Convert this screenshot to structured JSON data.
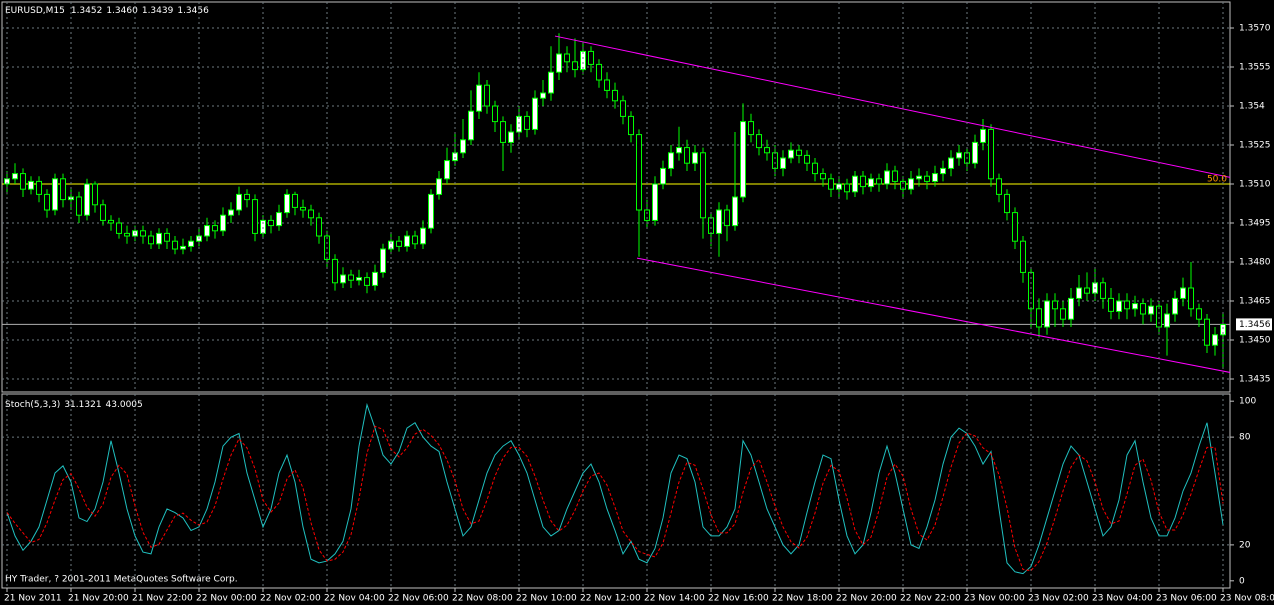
{
  "chart_data": [
    {
      "type": "candlestick",
      "title": "EURUSD,M15",
      "title_value_labels": [
        "1.3452",
        "1.3460",
        "1.3439",
        "1.3456"
      ],
      "categories": [
        "21 Nov 2011",
        null,
        null,
        null,
        null,
        null,
        null,
        null,
        "21 Nov 20:00",
        null,
        null,
        null,
        null,
        null,
        null,
        null,
        "21 Nov 22:00",
        null,
        null,
        null,
        null,
        null,
        null,
        null,
        "22 Nov 00:00",
        null,
        null,
        null,
        null,
        null,
        null,
        null,
        "22 Nov 02:00",
        null,
        null,
        null,
        null,
        null,
        null,
        null,
        "22 Nov 04:00",
        null,
        null,
        null,
        null,
        null,
        null,
        null,
        "22 Nov 06:00",
        null,
        null,
        null,
        null,
        null,
        null,
        null,
        "22 Nov 08:00",
        null,
        null,
        null,
        null,
        null,
        null,
        null,
        "22 Nov 10:00",
        null,
        null,
        null,
        null,
        null,
        null,
        null,
        "22 Nov 12:00",
        null,
        null,
        null,
        null,
        null,
        null,
        null,
        "22 Nov 14:00",
        null,
        null,
        null,
        null,
        null,
        null,
        null,
        "22 Nov 16:00",
        null,
        null,
        null,
        null,
        null,
        null,
        null,
        "22 Nov 18:00",
        null,
        null,
        null,
        null,
        null,
        null,
        null,
        "22 Nov 20:00",
        null,
        null,
        null,
        null,
        null,
        null,
        null,
        "22 Nov 22:00",
        null,
        null,
        null,
        null,
        null,
        null,
        null,
        "23 Nov 00:00",
        null,
        null,
        null,
        null,
        null,
        null,
        null,
        "23 Nov 02:00",
        null,
        null,
        null,
        null,
        null,
        null,
        null,
        "23 Nov 04:00",
        null,
        null,
        null,
        null,
        null,
        null,
        null,
        "23 Nov 06:00",
        null,
        null,
        null,
        null,
        null,
        null,
        null,
        "23 Nov 08:00"
      ],
      "open": [
        1.351,
        1.3512,
        1.3514,
        1.3508,
        1.3511,
        1.3506,
        1.35,
        1.3512,
        1.3504,
        1.3505,
        1.3498,
        1.351,
        1.3502,
        1.3496,
        1.3495,
        1.3491,
        1.349,
        1.3492,
        1.349,
        1.3487,
        1.3491,
        1.3488,
        1.3485,
        1.3486,
        1.3488,
        1.349,
        1.3494,
        1.3492,
        1.3498,
        1.35,
        1.3506,
        1.3504,
        1.3491,
        1.3496,
        1.3494,
        1.3499,
        1.3506,
        1.3501,
        1.35,
        1.3497,
        1.349,
        1.3481,
        1.3472,
        1.3475,
        1.3473,
        1.3474,
        1.3471,
        1.3476,
        1.3485,
        1.3488,
        1.3486,
        1.349,
        1.3487,
        1.3493,
        1.3506,
        1.3512,
        1.3519,
        1.3522,
        1.3527,
        1.3538,
        1.3548,
        1.354,
        1.3534,
        1.3526,
        1.353,
        1.3536,
        1.3531,
        1.3543,
        1.3545,
        1.3553,
        1.356,
        1.3557,
        1.3554,
        1.3561,
        1.3556,
        1.355,
        1.3546,
        1.3542,
        1.3536,
        1.3529,
        1.35,
        1.3496,
        1.351,
        1.3516,
        1.3522,
        1.3524,
        1.3518,
        1.3522,
        1.3497,
        1.3491,
        1.35,
        1.3494,
        1.3505,
        1.3534,
        1.3529,
        1.3524,
        1.3522,
        1.3516,
        1.352,
        1.3523,
        1.3521,
        1.3518,
        1.3514,
        1.3512,
        1.3508,
        1.351,
        1.3507,
        1.3513,
        1.3509,
        1.3512,
        1.351,
        1.3515,
        1.3511,
        1.3508,
        1.3512,
        1.3513,
        1.3511,
        1.3514,
        1.3516,
        1.352,
        1.3522,
        1.3518,
        1.3526,
        1.3531,
        1.3512,
        1.3506,
        1.3499,
        1.3488,
        1.3476,
        1.3462,
        1.3455,
        1.3465,
        1.3462,
        1.3458,
        1.3466,
        1.347,
        1.3468,
        1.3472,
        1.3466,
        1.3461,
        1.3465,
        1.3462,
        1.3464,
        1.346,
        1.3463,
        1.3455,
        1.346,
        1.3466,
        1.347,
        1.3462,
        1.3458,
        1.3448,
        1.3452
      ],
      "high": [
        1.3515,
        1.3518,
        1.3516,
        1.3513,
        1.3513,
        1.3508,
        1.3514,
        1.3514,
        1.3508,
        1.3507,
        1.3512,
        1.3511,
        1.3504,
        1.3498,
        1.3497,
        1.3494,
        1.3494,
        1.3494,
        1.3492,
        1.3493,
        1.3493,
        1.349,
        1.3489,
        1.349,
        1.3493,
        1.3497,
        1.3496,
        1.3501,
        1.3503,
        1.3509,
        1.3508,
        1.3506,
        1.3498,
        1.3498,
        1.3502,
        1.3508,
        1.3507,
        1.3504,
        1.3502,
        1.3499,
        1.3492,
        1.3483,
        1.3478,
        1.3477,
        1.3477,
        1.3476,
        1.3479,
        1.3487,
        1.3491,
        1.349,
        1.3492,
        1.3492,
        1.3496,
        1.3508,
        1.3515,
        1.3524,
        1.353,
        1.3535,
        1.3546,
        1.3553,
        1.355,
        1.3542,
        1.3536,
        1.3533,
        1.354,
        1.3538,
        1.3546,
        1.355,
        1.3563,
        1.3568,
        1.3563,
        1.3566,
        1.3564,
        1.3563,
        1.3558,
        1.3553,
        1.3549,
        1.3544,
        1.3538,
        1.3531,
        1.3504,
        1.3513,
        1.3519,
        1.3525,
        1.3532,
        1.3527,
        1.3525,
        1.3524,
        1.3499,
        1.3503,
        1.3502,
        1.353,
        1.3541,
        1.3537,
        1.3531,
        1.3527,
        1.3525,
        1.3523,
        1.3526,
        1.3525,
        1.3523,
        1.352,
        1.3516,
        1.3514,
        1.3513,
        1.3512,
        1.3515,
        1.3515,
        1.3514,
        1.3514,
        1.3518,
        1.3517,
        1.3513,
        1.3515,
        1.3516,
        1.3515,
        1.3517,
        1.3519,
        1.3523,
        1.3525,
        1.3524,
        1.3529,
        1.3535,
        1.3533,
        1.3514,
        1.3508,
        1.3501,
        1.349,
        1.3478,
        1.3466,
        1.3468,
        1.3468,
        1.3465,
        1.347,
        1.3475,
        1.3476,
        1.3478,
        1.3474,
        1.347,
        1.3468,
        1.3468,
        1.3467,
        1.3466,
        1.3466,
        1.3465,
        1.3464,
        1.3469,
        1.3474,
        1.348,
        1.3464,
        1.346,
        1.3455,
        1.346
      ],
      "low": [
        1.3506,
        1.351,
        1.3505,
        1.3506,
        1.3503,
        1.3497,
        1.3498,
        1.3501,
        1.35,
        1.3495,
        1.3496,
        1.3499,
        1.3494,
        1.3492,
        1.3489,
        1.3487,
        1.3488,
        1.3487,
        1.3485,
        1.3485,
        1.3485,
        1.3483,
        1.3483,
        1.3484,
        1.3486,
        1.3488,
        1.3489,
        1.349,
        1.3495,
        1.3498,
        1.3501,
        1.3488,
        1.3489,
        1.3491,
        1.3492,
        1.3497,
        1.3498,
        1.3497,
        1.3494,
        1.3487,
        1.3478,
        1.3469,
        1.347,
        1.347,
        1.3471,
        1.3468,
        1.3469,
        1.3474,
        1.3483,
        1.3484,
        1.3484,
        1.3485,
        1.3485,
        1.3491,
        1.3504,
        1.351,
        1.3517,
        1.352,
        1.3525,
        1.3535,
        1.3537,
        1.353,
        1.3515,
        1.3522,
        1.3527,
        1.3528,
        1.3529,
        1.354,
        1.3542,
        1.355,
        1.3553,
        1.3551,
        1.3552,
        1.3553,
        1.3547,
        1.3543,
        1.3539,
        1.3533,
        1.3526,
        1.3482,
        1.3493,
        1.3494,
        1.3508,
        1.3513,
        1.3519,
        1.3515,
        1.3515,
        1.3489,
        1.3486,
        1.3482,
        1.3488,
        1.3492,
        1.3503,
        1.3526,
        1.3521,
        1.3519,
        1.3513,
        1.3513,
        1.3518,
        1.3518,
        1.3515,
        1.3511,
        1.3509,
        1.3505,
        1.3505,
        1.3504,
        1.3505,
        1.3506,
        1.3507,
        1.3507,
        1.3508,
        1.3508,
        1.3505,
        1.3506,
        1.3509,
        1.3508,
        1.3509,
        1.3511,
        1.3513,
        1.3517,
        1.3515,
        1.3516,
        1.3523,
        1.3509,
        1.3503,
        1.3496,
        1.3485,
        1.3472,
        1.3455,
        1.3451,
        1.3452,
        1.3455,
        1.3455,
        1.3455,
        1.3463,
        1.3465,
        1.3465,
        1.3462,
        1.3458,
        1.3458,
        1.3458,
        1.3459,
        1.3456,
        1.3457,
        1.3452,
        1.3444,
        1.3457,
        1.3463,
        1.3459,
        1.3455,
        1.3445,
        1.3444,
        1.3439
      ],
      "close": [
        1.3512,
        1.3514,
        1.3508,
        1.3511,
        1.3506,
        1.35,
        1.3512,
        1.3504,
        1.3505,
        1.3498,
        1.351,
        1.3502,
        1.3496,
        1.3495,
        1.3491,
        1.349,
        1.3492,
        1.349,
        1.3487,
        1.3491,
        1.3488,
        1.3485,
        1.3486,
        1.3488,
        1.349,
        1.3494,
        1.3492,
        1.3498,
        1.35,
        1.3506,
        1.3504,
        1.3491,
        1.3496,
        1.3494,
        1.3499,
        1.3506,
        1.3501,
        1.35,
        1.3497,
        1.349,
        1.3481,
        1.3472,
        1.3475,
        1.3473,
        1.3474,
        1.3471,
        1.3476,
        1.3485,
        1.3488,
        1.3486,
        1.349,
        1.3487,
        1.3493,
        1.3506,
        1.3512,
        1.3519,
        1.3522,
        1.3527,
        1.3538,
        1.3548,
        1.354,
        1.3534,
        1.3526,
        1.353,
        1.3536,
        1.3531,
        1.3543,
        1.3545,
        1.3553,
        1.356,
        1.3557,
        1.3554,
        1.3561,
        1.3556,
        1.355,
        1.3546,
        1.3542,
        1.3536,
        1.3529,
        1.35,
        1.3496,
        1.351,
        1.3516,
        1.3522,
        1.3524,
        1.3518,
        1.3522,
        1.3497,
        1.3491,
        1.35,
        1.3494,
        1.3505,
        1.3534,
        1.3529,
        1.3524,
        1.3522,
        1.3516,
        1.352,
        1.3523,
        1.3521,
        1.3518,
        1.3514,
        1.3512,
        1.3508,
        1.351,
        1.3507,
        1.3513,
        1.3509,
        1.3512,
        1.351,
        1.3515,
        1.3511,
        1.3508,
        1.3512,
        1.3513,
        1.3511,
        1.3514,
        1.3516,
        1.352,
        1.3522,
        1.3518,
        1.3526,
        1.3531,
        1.3512,
        1.3506,
        1.3499,
        1.3488,
        1.3476,
        1.3462,
        1.3455,
        1.3465,
        1.3462,
        1.3458,
        1.3466,
        1.347,
        1.3468,
        1.3472,
        1.3466,
        1.3461,
        1.3465,
        1.3462,
        1.3464,
        1.346,
        1.3463,
        1.3455,
        1.346,
        1.3466,
        1.347,
        1.3462,
        1.3458,
        1.3448,
        1.3452,
        1.3456
      ],
      "colors": {
        "wick": "#00ff00",
        "up": "#ffffff",
        "down": "#000000",
        "grid": "#6e7a80",
        "last": "#b0b0b0"
      },
      "ylim": [
        1.343,
        1.358
      ],
      "yticks": [
        {
          "value": 1.357,
          "label": "1.3570"
        },
        1.3555,
        1.354,
        1.3525,
        {
          "value": 1.351,
          "label": "1.3510"
        },
        1.3495,
        {
          "value": 1.348,
          "label": "1.3480"
        },
        1.3465,
        {
          "value": 1.345,
          "label": "1.3450"
        },
        1.3435
      ],
      "yticks_fix": null,
      "grid": true,
      "level": {
        "value": 1.351,
        "label": "50.0",
        "color": "#ffff00",
        "label_color": "#ff9900"
      },
      "channel": {
        "color": "#ff00ff",
        "upper": {
          "x": [
            68.5,
            153.25
          ],
          "y": [
            1.35669,
            1.35123
          ]
        },
        "lower": {
          "x": [
            78.75,
            153.25
          ],
          "y": [
            1.34815,
            1.34373
          ]
        }
      }
    },
    {
      "type": "line",
      "title": "Stoch(5,3,3)",
      "footer": "HY Trader, ? 2001-2011 MetaQuotes Software Corp.",
      "series": [
        {
          "color": "#20c0c0",
          "values": [
            38,
            25,
            17,
            22,
            30,
            45,
            60,
            64,
            55,
            35,
            33,
            40,
            55,
            78,
            60,
            40,
            25,
            16,
            15,
            30,
            40,
            38,
            35,
            28,
            30,
            40,
            55,
            75,
            80,
            82,
            60,
            45,
            30,
            40,
            60,
            70,
            55,
            30,
            12,
            10,
            11,
            15,
            22,
            40,
            75,
            98,
            85,
            70,
            65,
            72,
            85,
            88,
            80,
            75,
            72,
            55,
            40,
            25,
            30,
            45,
            60,
            70,
            75,
            78,
            70,
            60,
            45,
            30,
            25,
            28,
            40,
            50,
            60,
            65,
            55,
            40,
            28,
            15,
            22,
            12,
            10,
            18,
            35,
            60,
            70,
            68,
            55,
            30,
            25,
            25,
            30,
            40,
            78,
            70,
            55,
            40,
            30,
            20,
            15,
            20,
            38,
            55,
            70,
            68,
            45,
            25,
            15,
            20,
            38,
            60,
            75,
            60,
            40,
            20,
            18,
            30,
            45,
            65,
            80,
            85,
            82,
            75,
            65,
            72,
            40,
            10,
            5,
            4,
            8,
            20,
            35,
            50,
            65,
            75,
            70,
            55,
            40,
            25,
            30,
            45,
            70,
            78,
            55,
            35,
            25,
            25,
            35,
            50,
            60,
            75,
            88,
            60,
            31.1321
          ]
        },
        {
          "color": "#ff0000",
          "dashed": true,
          "values": [
            38,
            32,
            26.7,
            21.3,
            23,
            32.3,
            45,
            56.3,
            59.7,
            51.3,
            41,
            36,
            42.7,
            57.7,
            64.3,
            59.3,
            41.7,
            27,
            18.7,
            20.3,
            28.3,
            36,
            37.7,
            33.7,
            31,
            32.7,
            41.7,
            56.7,
            70,
            79,
            74,
            62.3,
            45,
            38.3,
            43.3,
            56.7,
            61.7,
            51.7,
            32.3,
            17.3,
            11,
            12,
            16,
            25.7,
            45.7,
            71,
            86,
            84.3,
            73.3,
            69,
            74,
            81.7,
            84.3,
            81,
            75.7,
            67.3,
            55.7,
            40,
            31.7,
            33.3,
            45,
            58.3,
            68.3,
            74.3,
            74.3,
            69.3,
            58.3,
            45,
            33.3,
            27.7,
            31,
            39.3,
            50,
            58.3,
            60,
            53.3,
            41,
            27.7,
            21.7,
            16.3,
            14.7,
            13.3,
            21,
            37.7,
            55,
            66,
            64.3,
            51,
            36.7,
            26.7,
            26.7,
            31.7,
            49.3,
            62.7,
            67.7,
            55,
            41.7,
            30,
            21.7,
            18.3,
            24.3,
            37.7,
            54.3,
            64.3,
            61,
            46,
            28.3,
            20,
            24.3,
            39.3,
            57.7,
            65,
            58.3,
            40,
            26,
            22.7,
            31,
            46.7,
            63.3,
            76.7,
            82.3,
            80.7,
            74,
            70.7,
            59,
            40.7,
            18.3,
            6.3,
            5.7,
            10.7,
            21,
            35,
            50,
            63.3,
            70,
            66.7,
            55,
            40,
            31.7,
            33.3,
            48.3,
            64.3,
            67.7,
            56,
            38.3,
            28.3,
            28.3,
            36.7,
            48.3,
            61.7,
            74.3,
            74.3,
            43.0005
          ]
        }
      ],
      "ylim": [
        -4,
        104
      ],
      "yticks": [
        0,
        20,
        80,
        100
      ],
      "grid": true
    }
  ]
}
